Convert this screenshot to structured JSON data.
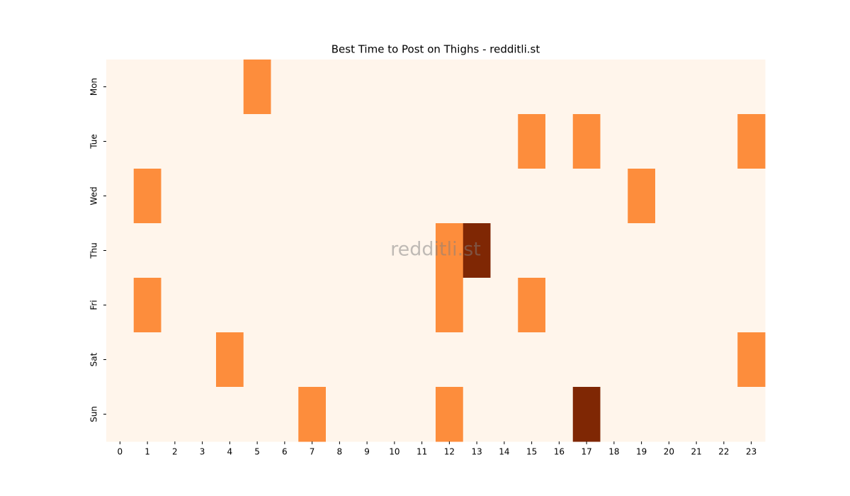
{
  "chart_data": {
    "type": "heatmap",
    "title": "Best Time to Post on Thighs - redditli.st",
    "watermark": "redditli.st",
    "x_categories": [
      "0",
      "1",
      "2",
      "3",
      "4",
      "5",
      "6",
      "7",
      "8",
      "9",
      "10",
      "11",
      "12",
      "13",
      "14",
      "15",
      "16",
      "17",
      "18",
      "19",
      "20",
      "21",
      "22",
      "23"
    ],
    "y_categories": [
      "Mon",
      "Tue",
      "Wed",
      "Thu",
      "Fri",
      "Sat",
      "Sun"
    ],
    "values": [
      [
        0,
        0,
        0,
        0,
        0,
        1,
        0,
        0,
        0,
        0,
        0,
        0,
        0,
        0,
        0,
        0,
        0,
        0,
        0,
        0,
        0,
        0,
        0,
        0
      ],
      [
        0,
        0,
        0,
        0,
        0,
        0,
        0,
        0,
        0,
        0,
        0,
        0,
        0,
        0,
        0,
        1,
        0,
        1,
        0,
        0,
        0,
        0,
        0,
        1
      ],
      [
        0,
        1,
        0,
        0,
        0,
        0,
        0,
        0,
        0,
        0,
        0,
        0,
        0,
        0,
        0,
        0,
        0,
        0,
        0,
        1,
        0,
        0,
        0,
        0
      ],
      [
        0,
        0,
        0,
        0,
        0,
        0,
        0,
        0,
        0,
        0,
        0,
        0,
        1,
        2,
        0,
        0,
        0,
        0,
        0,
        0,
        0,
        0,
        0,
        0
      ],
      [
        0,
        1,
        0,
        0,
        0,
        0,
        0,
        0,
        0,
        0,
        0,
        0,
        1,
        0,
        0,
        1,
        0,
        0,
        0,
        0,
        0,
        0,
        0,
        0
      ],
      [
        0,
        0,
        0,
        0,
        1,
        0,
        0,
        0,
        0,
        0,
        0,
        0,
        0,
        0,
        0,
        0,
        0,
        0,
        0,
        0,
        0,
        0,
        0,
        1
      ],
      [
        0,
        0,
        0,
        0,
        0,
        0,
        0,
        1,
        0,
        0,
        0,
        0,
        1,
        0,
        0,
        0,
        0,
        2,
        0,
        0,
        0,
        0,
        0,
        0
      ]
    ],
    "vlim": [
      0,
      2
    ],
    "colormap": [
      "#fff5eb",
      "#fd8d3c",
      "#7f2704"
    ]
  }
}
